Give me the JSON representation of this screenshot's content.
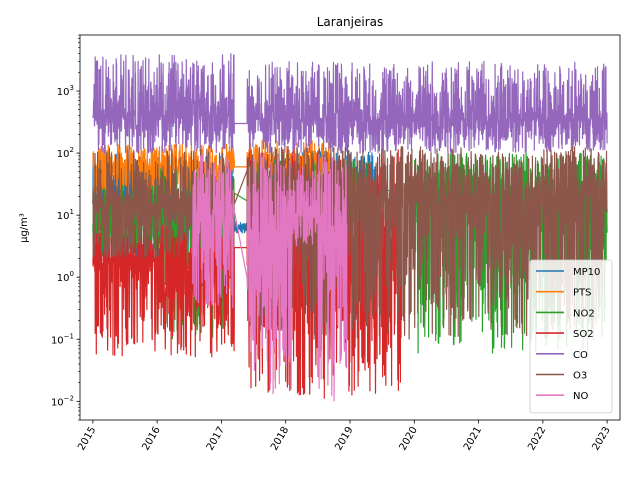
{
  "chart_data": {
    "type": "line",
    "title": "Laranjeiras",
    "xlabel": "",
    "ylabel": "µg/m³",
    "yscale": "log",
    "ylim": [
      0.005,
      8000
    ],
    "xlim": [
      2014.8,
      2023.2
    ],
    "x_ticks": [
      "2015",
      "2016",
      "2017",
      "2018",
      "2019",
      "2020",
      "2021",
      "2022",
      "2023"
    ],
    "y_ticks": [
      {
        "value": 0.01,
        "base": "10",
        "exp": "−2"
      },
      {
        "value": 0.1,
        "base": "10",
        "exp": "−1"
      },
      {
        "value": 1,
        "base": "10",
        "exp": "0"
      },
      {
        "value": 10,
        "base": "10",
        "exp": "1"
      },
      {
        "value": 100,
        "base": "10",
        "exp": "2"
      },
      {
        "value": 1000,
        "base": "10",
        "exp": "3"
      }
    ],
    "grid": false,
    "legend_position": "lower-right",
    "series": [
      {
        "name": "MP10",
        "color": "#1f77b4",
        "segments": [
          {
            "start": 2015.0,
            "end": 2017.2,
            "low": 1.0,
            "high": 100,
            "center": 12
          },
          {
            "start": 2017.2,
            "end": 2017.4,
            "low": 5,
            "high": 8,
            "center": 6
          },
          {
            "start": 2017.4,
            "end": 2019.4,
            "low": 3,
            "high": 110,
            "center": 30
          }
        ]
      },
      {
        "name": "PTS",
        "color": "#ff7f0e",
        "segments": [
          {
            "start": 2015.0,
            "end": 2017.2,
            "low": 20,
            "high": 140,
            "center": 60
          },
          {
            "start": 2017.2,
            "end": 2017.4,
            "low": 60,
            "high": 60,
            "center": 60
          },
          {
            "start": 2017.4,
            "end": 2018.7,
            "low": 20,
            "high": 160,
            "center": 60
          }
        ]
      },
      {
        "name": "NO2",
        "color": "#2ca02c",
        "segments": [
          {
            "start": 2015.0,
            "end": 2016.0,
            "low": 2,
            "high": 30,
            "center": 8
          },
          {
            "start": 2016.0,
            "end": 2017.2,
            "low": 0.1,
            "high": 60,
            "center": 8
          },
          {
            "start": 2017.4,
            "end": 2019.3,
            "low": 1,
            "high": 80,
            "center": 20
          },
          {
            "start": 2019.3,
            "end": 2020.0,
            "low": 25,
            "high": 25,
            "center": 25
          },
          {
            "start": 2020.0,
            "end": 2023.0,
            "low": 0.06,
            "high": 100,
            "center": 25
          }
        ]
      },
      {
        "name": "SO2",
        "color": "#d62728",
        "segments": [
          {
            "start": 2015.0,
            "end": 2017.2,
            "low": 0.05,
            "high": 8,
            "center": 2
          },
          {
            "start": 2017.2,
            "end": 2017.4,
            "low": 3,
            "high": 3,
            "center": 3
          },
          {
            "start": 2017.4,
            "end": 2019.8,
            "low": 0.01,
            "high": 120,
            "center": 2
          }
        ]
      },
      {
        "name": "CO",
        "color": "#9467bd",
        "segments": [
          {
            "start": 2015.0,
            "end": 2017.2,
            "low": 100,
            "high": 4000,
            "center": 400
          },
          {
            "start": 2017.2,
            "end": 2017.4,
            "low": 300,
            "high": 300,
            "center": 300
          },
          {
            "start": 2017.4,
            "end": 2023.0,
            "low": 100,
            "high": 3000,
            "center": 350
          }
        ]
      },
      {
        "name": "O3",
        "color": "#8c564b",
        "segments": [
          {
            "start": 2015.0,
            "end": 2017.2,
            "low": 2,
            "high": 120,
            "center": 15
          },
          {
            "start": 2017.4,
            "end": 2023.0,
            "low": 0.1,
            "high": 130,
            "center": 20
          }
        ]
      },
      {
        "name": "NO",
        "color": "#e377c2",
        "segments": [
          {
            "start": 2016.55,
            "end": 2017.2,
            "low": 0.3,
            "high": 100,
            "center": 10
          },
          {
            "start": 2017.4,
            "end": 2018.1,
            "low": 0.01,
            "high": 120,
            "center": 5
          },
          {
            "start": 2018.1,
            "end": 2018.5,
            "low": 3,
            "high": 60,
            "center": 10
          },
          {
            "start": 2018.5,
            "end": 2018.95,
            "low": 0.01,
            "high": 100,
            "center": 5
          }
        ]
      }
    ]
  }
}
